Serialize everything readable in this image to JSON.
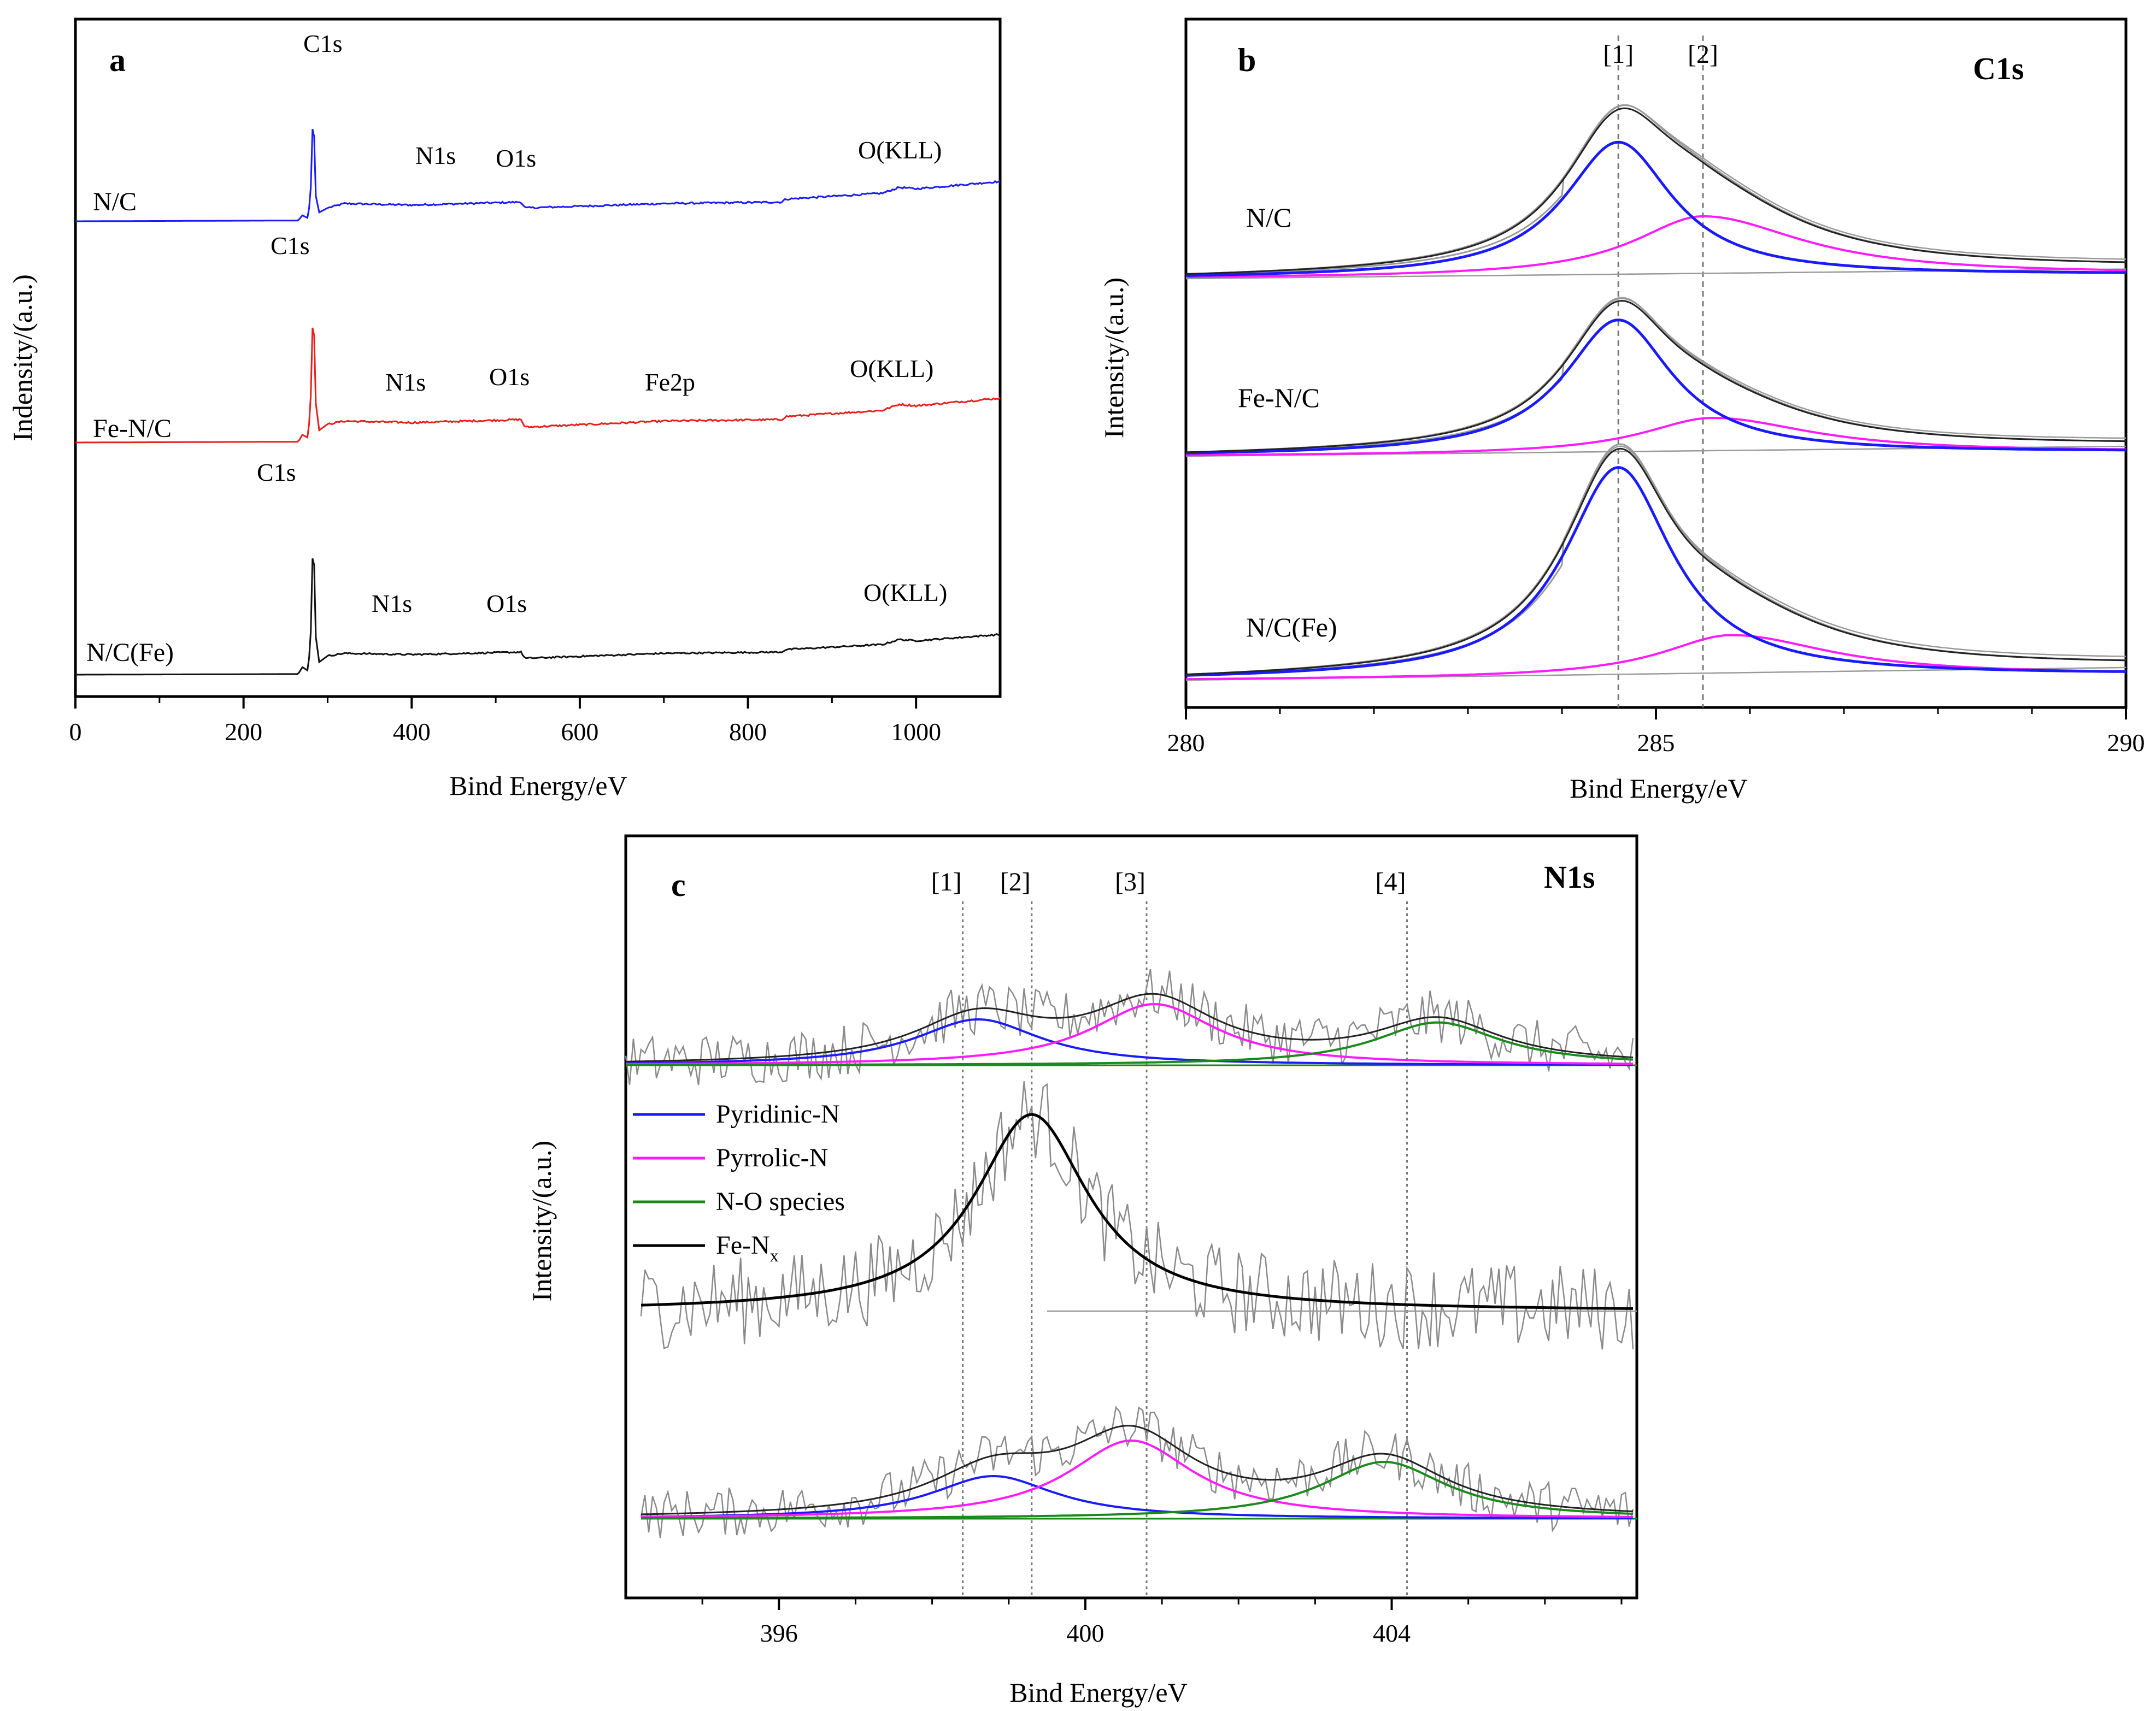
{
  "chart_data": [
    {
      "panel": "a",
      "type": "line",
      "title": "",
      "xlabel": "Bind Energy/eV",
      "ylabel": "Indensity/(a.u.)",
      "xlim": [
        0,
        1100
      ],
      "x_ticks": [
        "0",
        "200",
        "400",
        "600",
        "800",
        "1000"
      ],
      "series": [
        {
          "name": "N/C",
          "color": "#1a1aff",
          "peaks": [
            "C1s",
            "N1s",
            "O1s",
            "O(KLL)"
          ],
          "x": [
            0,
            265,
            270,
            277,
            281,
            283,
            285,
            290,
            300,
            320,
            400,
            530,
            535,
            700,
            840,
            845,
            960,
            980,
            1000,
            1100
          ],
          "y": [
            0,
            0.5,
            4,
            2,
            30,
            95,
            20,
            6,
            9,
            12,
            11,
            13,
            9,
            12,
            13,
            15,
            19,
            23,
            22,
            27
          ]
        },
        {
          "name": "Fe-N/C",
          "color": "#e8201c",
          "peaks": [
            "C1s",
            "N1s",
            "O1s",
            "Fe2p",
            "O(KLL)"
          ],
          "x": [
            0,
            265,
            270,
            277,
            281,
            283,
            285,
            290,
            300,
            320,
            400,
            530,
            535,
            700,
            840,
            845,
            960,
            980,
            1000,
            1100
          ],
          "y": [
            0,
            0.5,
            5,
            3,
            40,
            110,
            30,
            8,
            12,
            14,
            13,
            15,
            10,
            14,
            15,
            17,
            21,
            25,
            24,
            29
          ]
        },
        {
          "name": "N/C(Fe)",
          "color": "#111111",
          "peaks": [
            "C1s",
            "N1s",
            "O1s",
            "O(KLL)"
          ],
          "x": [
            0,
            265,
            270,
            277,
            281,
            283,
            285,
            290,
            300,
            320,
            400,
            530,
            535,
            700,
            840,
            845,
            960,
            980,
            1000,
            1100
          ],
          "y": [
            0,
            0.5,
            6,
            3,
            45,
            140,
            35,
            10,
            15,
            17,
            16,
            18,
            13,
            17,
            18,
            20,
            24,
            28,
            27,
            32
          ]
        }
      ],
      "annotations": [
        {
          "series": "N/C",
          "labels": [
            "C1s",
            "N1s",
            "O1s",
            "O(KLL)"
          ]
        },
        {
          "series": "Fe-N/C",
          "labels": [
            "C1s",
            "N1s",
            "O1s",
            "Fe2p",
            "O(KLL)"
          ]
        },
        {
          "series": "N/C(Fe)",
          "labels": [
            "C1s",
            "N1s",
            "O1s",
            "O(KLL)"
          ]
        }
      ]
    },
    {
      "panel": "b",
      "type": "line",
      "title": "C1s",
      "xlabel": "Bind Energy/eV",
      "ylabel": "Intensity/(a.u.)",
      "xlim": [
        280,
        290
      ],
      "x_ticks": [
        "280",
        "285",
        "290"
      ],
      "reference_lines": [
        {
          "label": "[1]",
          "x": 284.6
        },
        {
          "label": "[2]",
          "x": 285.5
        }
      ],
      "samples": [
        {
          "name": "N/C",
          "peak1": {
            "center": 284.6,
            "height": 0.85
          },
          "peak2": {
            "center": 285.5,
            "height": 0.38
          }
        },
        {
          "name": "Fe-N/C",
          "peak1": {
            "center": 284.6,
            "height": 0.82
          },
          "peak2": {
            "center": 285.6,
            "height": 0.22
          }
        },
        {
          "name": "N/C(Fe)",
          "peak1": {
            "center": 284.6,
            "height": 1.0
          },
          "peak2": {
            "center": 285.8,
            "height": 0.2
          }
        }
      ],
      "fit_colors": {
        "C-C peak": "#1a1aff",
        "second peak": "#ff1aff",
        "envelope": "#222222",
        "raw": "#9a9a9a"
      }
    },
    {
      "panel": "c",
      "type": "line",
      "title": "N1s",
      "xlabel": "Bind Energy/eV",
      "ylabel": "Intensity/(a.u.)",
      "xlim": [
        394,
        407.2
      ],
      "x_ticks": [
        "396",
        "400",
        "404"
      ],
      "reference_lines": [
        {
          "label": "[1]",
          "x": 398.4
        },
        {
          "label": "[2]",
          "x": 399.3
        },
        {
          "label": "[3]",
          "x": 400.8
        },
        {
          "label": "[4]",
          "x": 404.2
        }
      ],
      "legend": [
        {
          "label": "Pyridinic-N",
          "color": "#1a1aff"
        },
        {
          "label": "Pyrrolic-N",
          "color": "#ff1aff"
        },
        {
          "label": "N-O species",
          "color": "#1a8a1a"
        },
        {
          "label_main": "Fe-N",
          "label_sub": "x",
          "color": "#000000"
        }
      ],
      "samples": [
        {
          "name": "top",
          "pyridinic": {
            "center": 398.6,
            "height": 0.3
          },
          "pyrrolic": {
            "center": 400.9,
            "height": 0.4
          },
          "n_o": {
            "center": 404.6,
            "height": 0.28
          }
        },
        {
          "name": "middle",
          "fe_nx": {
            "center": 399.3,
            "height": 1.0
          }
        },
        {
          "name": "bottom",
          "pyridinic": {
            "center": 398.8,
            "height": 0.3
          },
          "pyrrolic": {
            "center": 400.6,
            "height": 0.55
          },
          "n_o": {
            "center": 403.9,
            "height": 0.4
          }
        }
      ]
    }
  ]
}
